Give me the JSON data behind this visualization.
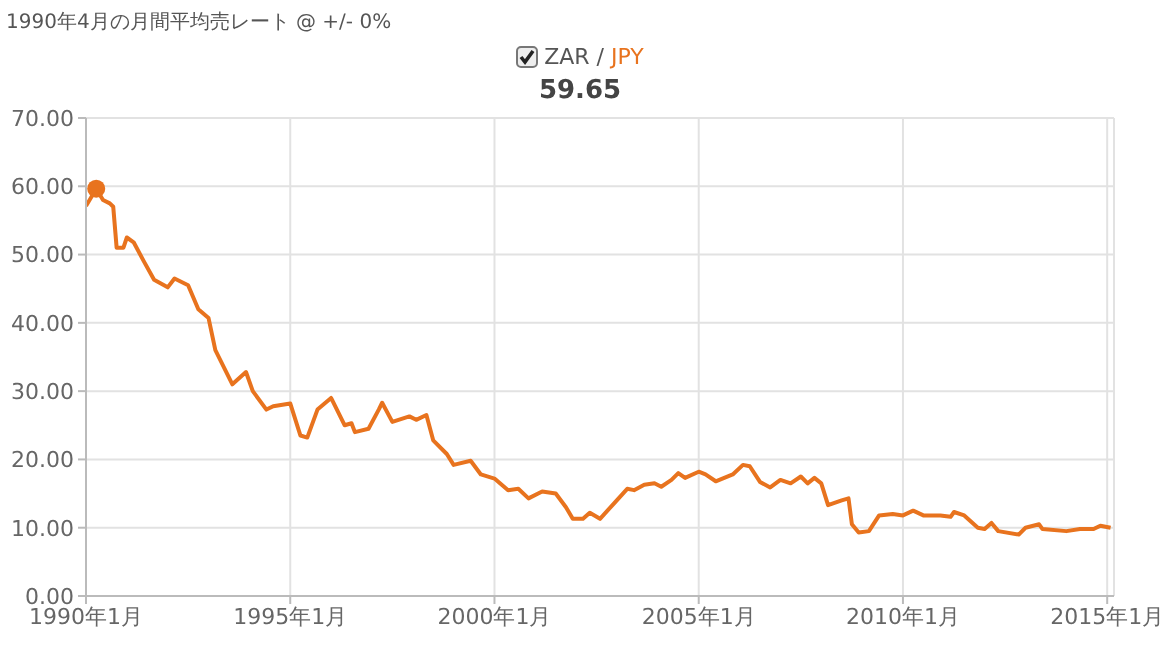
{
  "chart_data": {
    "type": "line",
    "title": "1990年4月の月間平均売レート @ +/- 0%",
    "legend": "top",
    "grid": true,
    "marker": "none",
    "line_style": "solid",
    "annotations": [
      "59.65"
    ],
    "x": [
      "1990-01",
      "1990-04",
      "1990-06",
      "1990-08",
      "1990-09",
      "1990-10",
      "1990-12",
      "1991-01",
      "1991-03",
      "1991-06",
      "1991-09",
      "1992-01",
      "1992-03",
      "1992-07",
      "1992-10",
      "1993-01",
      "1993-03",
      "1993-08",
      "1993-12",
      "1994-02",
      "1994-06",
      "1994-08",
      "1995-01",
      "1995-04",
      "1995-06",
      "1995-09",
      "1996-01",
      "1996-05",
      "1996-07",
      "1996-08",
      "1996-12",
      "1997-03",
      "1997-04",
      "1997-07",
      "1997-12",
      "1998-02",
      "1998-05",
      "1998-07",
      "1998-11",
      "1999-01",
      "1999-06",
      "1999-09",
      "2000-01",
      "2000-05",
      "2000-08",
      "2000-11",
      "2001-03",
      "2001-07",
      "2001-10",
      "2001-12",
      "2002-03",
      "2002-05",
      "2002-08",
      "2002-12",
      "2003-04",
      "2003-06",
      "2003-09",
      "2003-12",
      "2004-02",
      "2004-05",
      "2004-07",
      "2004-09",
      "2005-01",
      "2005-03",
      "2005-06",
      "2005-11",
      "2006-02",
      "2006-04",
      "2006-07",
      "2006-10",
      "2007-01",
      "2007-04",
      "2007-07",
      "2007-09",
      "2007-11",
      "2008-01",
      "2008-03",
      "2008-07",
      "2008-09",
      "2008-10",
      "2008-12",
      "2009-03",
      "2009-06",
      "2009-10",
      "2010-01",
      "2010-04",
      "2010-07",
      "2010-12",
      "2011-03",
      "2011-04",
      "2011-07",
      "2011-11",
      "2012-01",
      "2012-03",
      "2012-05",
      "2012-11",
      "2013-01",
      "2013-05",
      "2013-06",
      "2014-01",
      "2014-05",
      "2014-09",
      "2014-11",
      "2015-02"
    ],
    "series": [
      {
        "name": "ZAR / JPY",
        "color": "#e8731e",
        "values": [
          57.1,
          59.65,
          58,
          57.5,
          57,
          51,
          51,
          52.5,
          51.8,
          49,
          46.3,
          45.2,
          46.5,
          45.5,
          42,
          40.7,
          36,
          31,
          32.8,
          30,
          27.3,
          27.8,
          28.2,
          23.5,
          23.2,
          27.3,
          29,
          25,
          25.3,
          24,
          24.5,
          27.3,
          28.3,
          25.5,
          26.3,
          25.8,
          26.5,
          22.8,
          20.8,
          19.2,
          19.8,
          17.8,
          17.2,
          15.5,
          15.7,
          14.3,
          15.3,
          15,
          13,
          11.3,
          11.3,
          12.2,
          11.3,
          13.5,
          15.7,
          15.5,
          16.3,
          16.5,
          16,
          17,
          18,
          17.3,
          18.2,
          17.8,
          16.8,
          17.8,
          19.2,
          19,
          16.7,
          15.9,
          17,
          16.5,
          17.5,
          16.5,
          17.3,
          16.5,
          13.3,
          14,
          14.3,
          10.5,
          9.3,
          9.5,
          11.8,
          12,
          11.8,
          12.5,
          11.8,
          11.8,
          11.6,
          12.3,
          11.8,
          10,
          9.8,
          10.7,
          9.5,
          9,
          10,
          10.5,
          9.8,
          9.5,
          9.8,
          9.8,
          10.3,
          10
        ]
      },
      {
        "type": "scatter",
        "color": "#e8731e",
        "marker": "circle",
        "x": [
          "1990-04"
        ],
        "values": [
          59.65
        ]
      }
    ],
    "xlim": [
      "1990-01",
      "2015-03"
    ],
    "xticks": [
      {
        "value": "1990-01",
        "label": "1990年1月"
      },
      {
        "value": "1995-01",
        "label": "1995年1月"
      },
      {
        "value": "2000-01",
        "label": "2000年1月"
      },
      {
        "value": "2005-01",
        "label": "2005年1月"
      },
      {
        "value": "2010-01",
        "label": "2010年1月"
      },
      {
        "value": "2015-01",
        "label": "2015年1月"
      }
    ],
    "ylim": [
      0,
      70
    ],
    "yticks": [
      {
        "value": 0,
        "label": "0.00"
      },
      {
        "value": 10,
        "label": "10.00"
      },
      {
        "value": 20,
        "label": "20.00"
      },
      {
        "value": 30,
        "label": "30.00"
      },
      {
        "value": 40,
        "label": "40.00"
      },
      {
        "value": 50,
        "label": "50.00"
      },
      {
        "value": 60,
        "label": "60.00"
      },
      {
        "value": 70,
        "label": "70.00"
      }
    ]
  }
}
